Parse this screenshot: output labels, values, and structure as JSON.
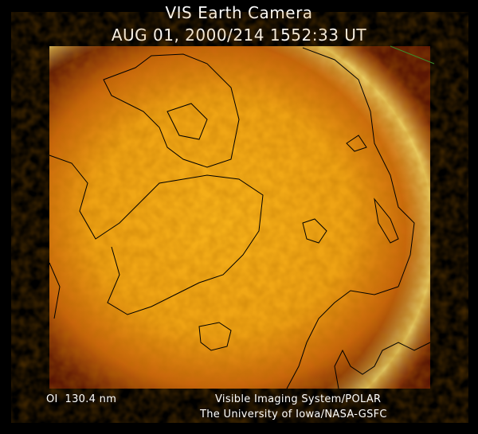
{
  "header": {
    "title": "VIS Earth Camera",
    "timestamp": "AUG 01, 2000/214 1552:33 UT"
  },
  "footer": {
    "filter": "OI  130.4 nm",
    "instrument": "Visible Imaging System/POLAR",
    "institution": "The University of Iowa/NASA-GSFC"
  }
}
